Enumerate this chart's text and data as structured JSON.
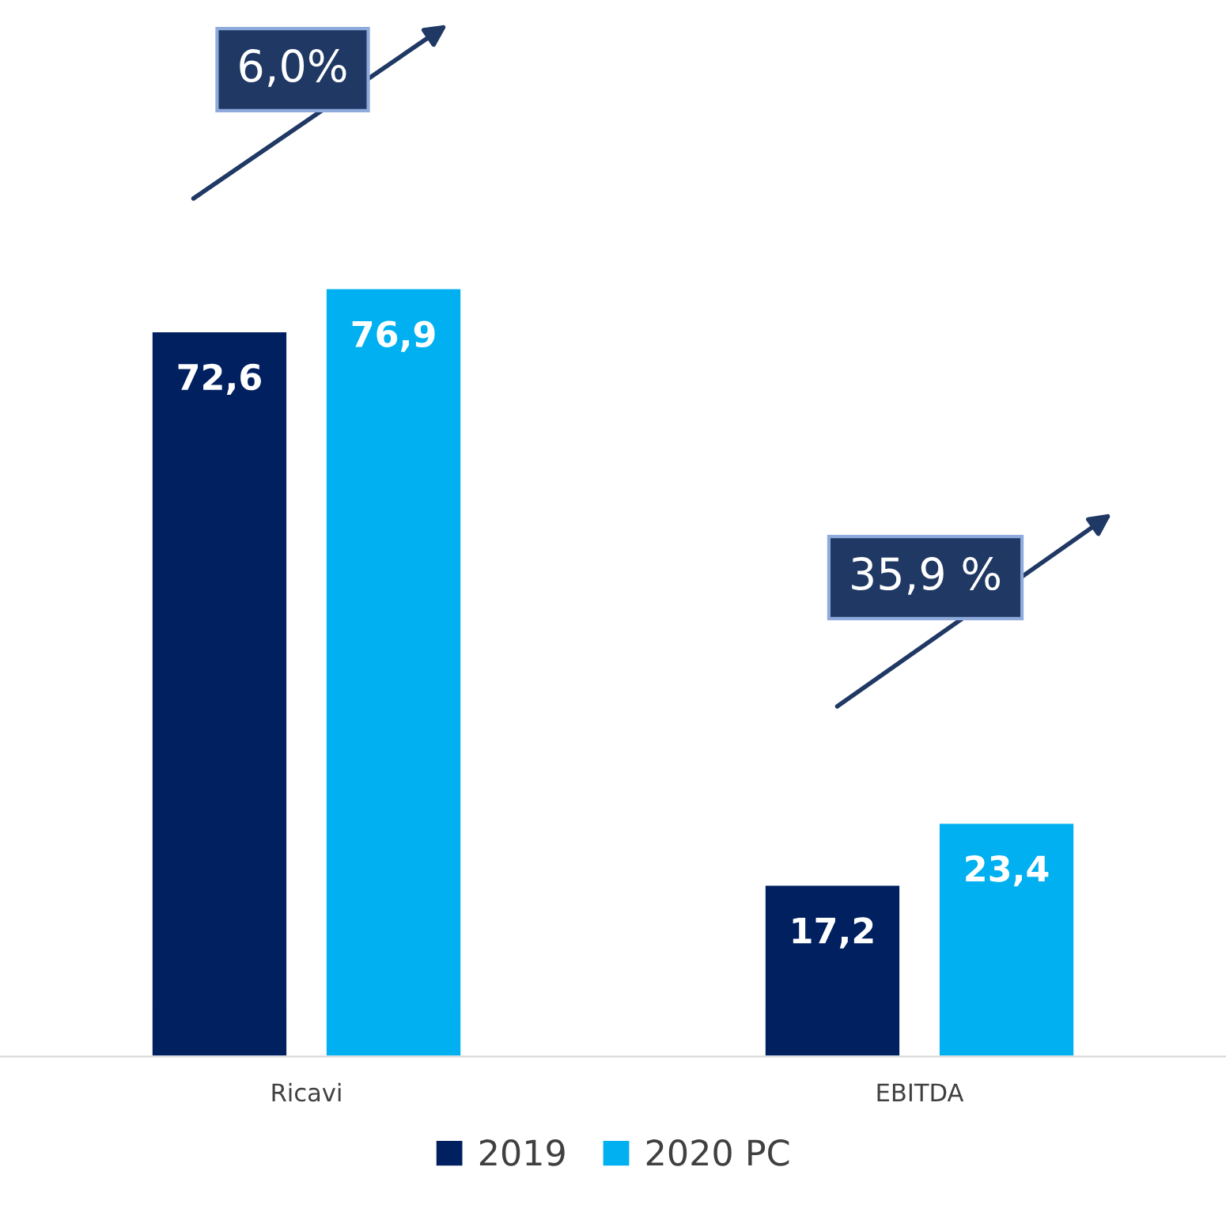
{
  "chart_data": {
    "type": "bar",
    "categories": [
      "Ricavi",
      "EBITDA"
    ],
    "series": [
      {
        "name": "2019",
        "color": "#002060",
        "values": [
          72.6,
          17.2
        ],
        "value_labels": [
          "72,6",
          "17,2"
        ]
      },
      {
        "name": "2020 PC",
        "color": "#00b0f0",
        "values": [
          76.9,
          23.4
        ],
        "value_labels": [
          "76,9",
          "23,4"
        ]
      }
    ],
    "annotations": [
      "6,0%",
      "35,9 %"
    ],
    "legend": "bottom",
    "grid": false,
    "tick_labels": "x"
  }
}
